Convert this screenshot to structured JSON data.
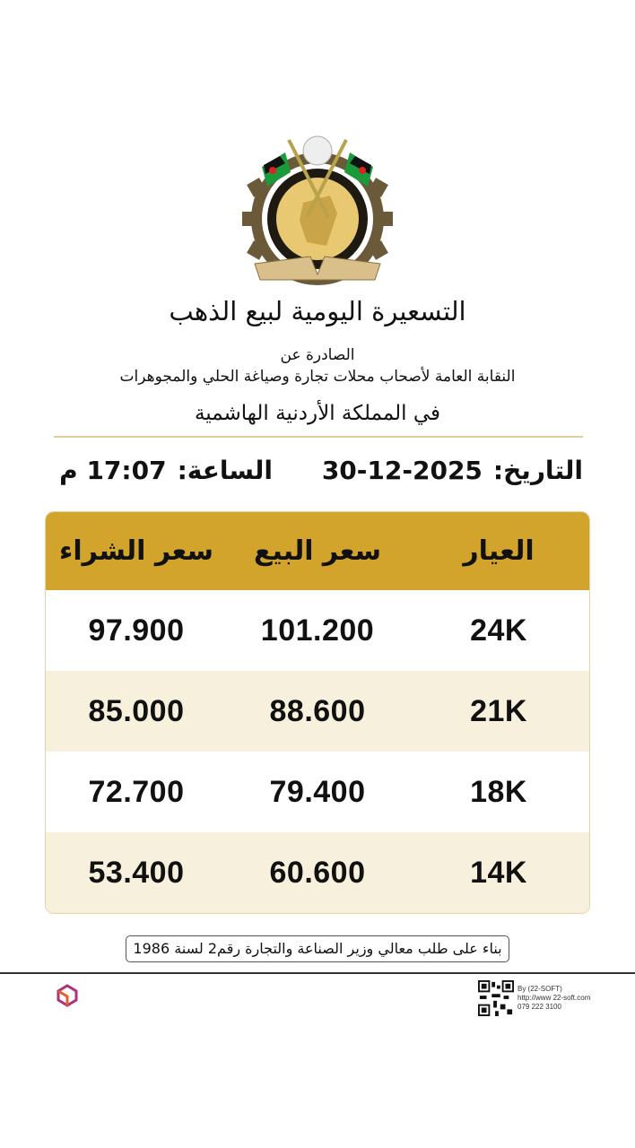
{
  "header": {
    "logo_text": "النقابة العامة لأصحاب محلات تجارة وصياغة الحلي والمجوهرات",
    "title": "التسعيرة اليومية لبيع الذهب",
    "issued_by": "الصادرة عن",
    "organization": "النقابة العامة لأصحاب محلات تجارة وصياغة الحلي والمجوهرات",
    "country": "في المملكة الأردنية الهاشمية"
  },
  "datetime": {
    "date_label": "التاريخ:",
    "date_value": "30-12-2025",
    "time_label": "الساعة:",
    "time_value": "17:07 م"
  },
  "table": {
    "columns": [
      "العيار",
      "سعر البيع",
      "سعر الشراء"
    ],
    "rows": [
      {
        "karat": "24K",
        "sell": "101.200",
        "buy": "97.900"
      },
      {
        "karat": "21K",
        "sell": "88.600",
        "buy": "85.000"
      },
      {
        "karat": "18K",
        "sell": "79.400",
        "buy": "72.700"
      },
      {
        "karat": "14K",
        "sell": "60.600",
        "buy": "53.400"
      }
    ],
    "colors": {
      "header": "#D3A42C",
      "alt_row": "#F7F0DD"
    }
  },
  "footer": {
    "note": "بناء على طلب معالي وزير الصناعة والتجارة رقم2 لسنة 1986",
    "credit_by": "By (22-SOFT)",
    "credit_url": "http://www 22-soft.com",
    "credit_phone": "079 222 3100",
    "brand_logo_text": "22-soft"
  }
}
